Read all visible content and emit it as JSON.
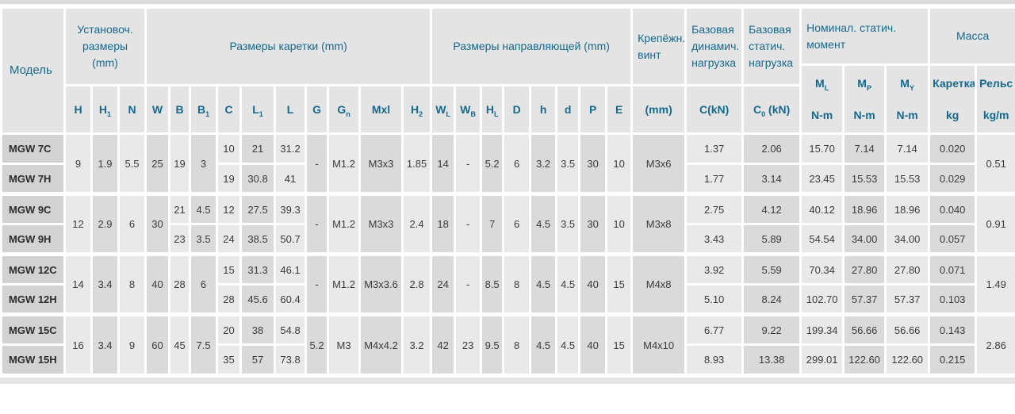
{
  "colors": {
    "accent_teal": "#15698d",
    "header_bg": "#e4e4e5",
    "stripe_light": "#e9e9ea",
    "stripe_dark": "#dadadb",
    "model_col_bg": "#d2d2d3"
  },
  "header": {
    "model": "Модель",
    "groups": {
      "install": "Установоч. размеры (mm)",
      "carriage": "Размеры каретки (mm)",
      "rail_dims": "Размеры направляющей (mm)",
      "screw": "Крепёжн. винт",
      "dynamic_load": "Базовая динамич. нагрузка",
      "static_load": "Базовая статич. нагрузка",
      "static_moment": "Номинал. статич. момент",
      "mass": "Масса"
    },
    "subs": {
      "H": "H",
      "H1": "H_1",
      "N": "N",
      "W": "W",
      "B": "B",
      "B1": "B_1",
      "C": "C",
      "L1": "L_1",
      "L": "L",
      "G": "G",
      "Gn": "G_n",
      "Mxl": "Mxl",
      "H2": "H_2",
      "WL": "W_L",
      "WB": "W_B",
      "HL": "H_L",
      "D": "D",
      "h": "h",
      "d": "d",
      "P": "P",
      "E": "E",
      "screw": "(mm)",
      "C_kN": "C(kN)",
      "C0_kN": "C_0_ (kN)",
      "ML": "M_L_\nN-m",
      "MP": "M_P_\nN-m",
      "MY": "M_Y_\nN-m",
      "cart": "Каретка\nkg",
      "rail": "Рельс\nkg/m"
    }
  },
  "body": {
    "groups": [
      {
        "model": [
          "MGW 7C",
          "MGW 7H"
        ],
        "H": "9",
        "H1": "1.9",
        "N": "5.5",
        "W": "25",
        "B": "19",
        "B1": "3",
        "C": [
          "10",
          "19"
        ],
        "L1": [
          "21",
          "30.8"
        ],
        "L": [
          "31.2",
          "41"
        ],
        "G": "-",
        "Gn": "M1.2",
        "Mxl": "M3x3",
        "H2": "1.85",
        "WL": "14",
        "WB": "-",
        "HL": "5.2",
        "D": "6",
        "h": "3.2",
        "d": "3.5",
        "P": "30",
        "E": "10",
        "screw": "M3x6",
        "C_kN": [
          "1.37",
          "1.77"
        ],
        "C0_kN": [
          "2.06",
          "3.14"
        ],
        "ML": [
          "15.70",
          "23.45"
        ],
        "MP": [
          "7.14",
          "15.53"
        ],
        "MY": [
          "7.14",
          "15.53"
        ],
        "cart": [
          "0.020",
          "0.029"
        ],
        "rail": "0.51"
      },
      {
        "model": [
          "MGW 9C",
          "MGW 9H"
        ],
        "H": "12",
        "H1": "2.9",
        "N": "6",
        "W": "30",
        "B": [
          "21",
          "23"
        ],
        "B1": [
          "4.5",
          "3.5"
        ],
        "C": [
          "12",
          "24"
        ],
        "L1": [
          "27.5",
          "38.5"
        ],
        "L": [
          "39.3",
          "50.7"
        ],
        "G": "-",
        "Gn": "M1.2",
        "Mxl": "M3x3",
        "H2": "2.4",
        "WL": "18",
        "WB": "-",
        "HL": "7",
        "D": "6",
        "h": "4.5",
        "d": "3.5",
        "P": "30",
        "E": "10",
        "screw": "M3x8",
        "C_kN": [
          "2.75",
          "3.43"
        ],
        "C0_kN": [
          "4.12",
          "5.89"
        ],
        "ML": [
          "40.12",
          "54.54"
        ],
        "MP": [
          "18.96",
          "34.00"
        ],
        "MY": [
          "18.96",
          "34.00"
        ],
        "cart": [
          "0.040",
          "0.057"
        ],
        "rail": "0.91"
      },
      {
        "model": [
          "MGW 12C",
          "MGW 12H"
        ],
        "H": "14",
        "H1": "3.4",
        "N": "8",
        "W": "40",
        "B": "28",
        "B1": "6",
        "C": [
          "15",
          "28"
        ],
        "L1": [
          "31.3",
          "45.6"
        ],
        "L": [
          "46.1",
          "60.4"
        ],
        "G": "-",
        "Gn": "M1.2",
        "Mxl": "M3x3.6",
        "H2": "2.8",
        "WL": "24",
        "WB": "-",
        "HL": "8.5",
        "D": "8",
        "h": "4.5",
        "d": "4.5",
        "P": "40",
        "E": "15",
        "screw": "M4x8",
        "C_kN": [
          "3.92",
          "5.10"
        ],
        "C0_kN": [
          "5.59",
          "8.24"
        ],
        "ML": [
          "70.34",
          "102.70"
        ],
        "MP": [
          "27.80",
          "57.37"
        ],
        "MY": [
          "27.80",
          "57.37"
        ],
        "cart": [
          "0.071",
          "0.103"
        ],
        "rail": "1.49"
      },
      {
        "model": [
          "MGW 15C",
          "MGW 15H"
        ],
        "H": "16",
        "H1": "3.4",
        "N": "9",
        "W": "60",
        "B": "45",
        "B1": "7.5",
        "C": [
          "20",
          "35"
        ],
        "L1": [
          "38",
          "57"
        ],
        "L": [
          "54.8",
          "73.8"
        ],
        "G": "5.2",
        "Gn": "M3",
        "Mxl": "M4x4.2",
        "H2": "3.2",
        "WL": "42",
        "WB": "23",
        "HL": "9.5",
        "D": "8",
        "h": "4.5",
        "d": "4.5",
        "P": "40",
        "E": "15",
        "screw": "M4x10",
        "C_kN": [
          "6.77",
          "8.93"
        ],
        "C0_kN": [
          "9.22",
          "13.38"
        ],
        "ML": [
          "199.34",
          "299.01"
        ],
        "MP": [
          "56.66",
          "122.60"
        ],
        "MY": [
          "56.66",
          "122.60"
        ],
        "cart": [
          "0.143",
          "0.215"
        ],
        "rail": "2.86"
      }
    ]
  }
}
